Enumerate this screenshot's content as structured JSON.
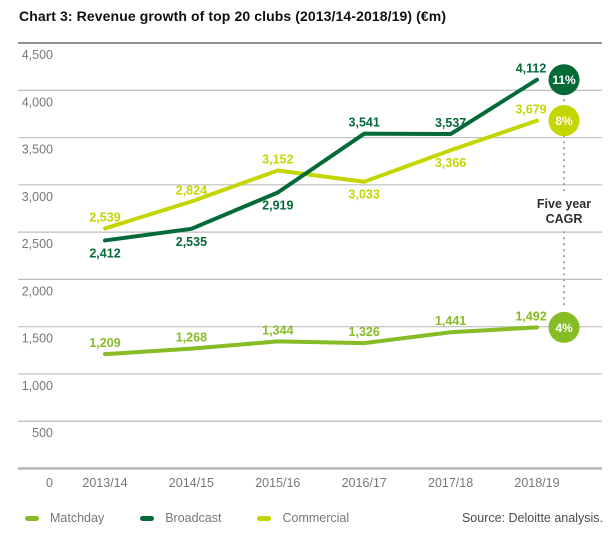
{
  "title": "Chart 3: Revenue growth of top 20 clubs (2013/14-2018/19) (€m)",
  "source": "Source: Deloitte analysis.",
  "chart_data": {
    "type": "line",
    "title": "Chart 3: Revenue growth of top 20 clubs (2013/14-2018/19) (€m)",
    "categories": [
      "2013/14",
      "2014/15",
      "2015/16",
      "2016/17",
      "2017/18",
      "2018/19"
    ],
    "ylim": [
      0,
      4500
    ],
    "ytick_step": 500,
    "grid": "horizontal",
    "legend_position": "bottom-left",
    "annotation": {
      "label_lines": [
        "Five year",
        "CAGR"
      ],
      "color": "#2e2f30"
    },
    "series": [
      {
        "name": "Matchday",
        "color": "#86bc25",
        "values": [
          1209,
          1268,
          1344,
          1326,
          1441,
          1492
        ],
        "cagr": "4%",
        "label_positions": [
          "above",
          "above",
          "above",
          "above",
          "above",
          "above"
        ]
      },
      {
        "name": "Broadcast",
        "color": "#046a38",
        "values": [
          2412,
          2535,
          2919,
          3541,
          3537,
          4112
        ],
        "cagr": "11%",
        "label_positions": [
          "below",
          "below",
          "below",
          "above",
          "above",
          "above"
        ]
      },
      {
        "name": "Commercial",
        "color": "#c4d600",
        "values": [
          2539,
          2824,
          3152,
          3033,
          3366,
          3679
        ],
        "cagr": "8%",
        "label_positions": [
          "above",
          "above",
          "above",
          "below",
          "below",
          "above"
        ]
      }
    ],
    "draw_order": [
      0,
      2,
      1
    ],
    "colors": {
      "top_line": "#8e9093",
      "gridline": "#bdbebf",
      "axis_line": "#b3b5b7",
      "tick_label": "#75787b",
      "dotted_line": "#a7a8aa",
      "badge_text": "#ffffff"
    }
  }
}
